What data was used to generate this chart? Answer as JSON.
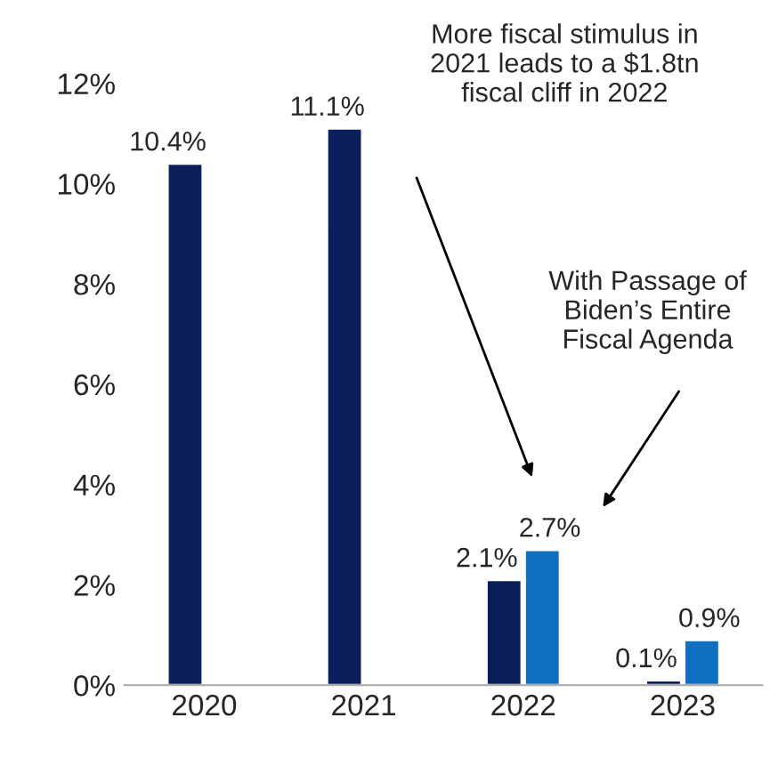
{
  "chart_data": {
    "type": "bar",
    "categories": [
      "2020",
      "2021",
      "2022",
      "2023"
    ],
    "series": [
      {
        "color": "#0b1f5c",
        "values": [
          10.4,
          11.1,
          2.1,
          0.1
        ],
        "value_labels": [
          "10.4%",
          "11.1%",
          "2.1%",
          "0.1%"
        ]
      },
      {
        "color": "#1070c0",
        "values": [
          null,
          null,
          2.7,
          0.9
        ],
        "value_labels": [
          null,
          null,
          "2.7%",
          "0.9%"
        ]
      }
    ],
    "ylim": [
      0,
      12
    ],
    "yticks": [
      {
        "value": 0,
        "label": "0%"
      },
      {
        "value": 2,
        "label": "2%"
      },
      {
        "value": 4,
        "label": "4%"
      },
      {
        "value": 6,
        "label": "6%"
      },
      {
        "value": 8,
        "label": "8%"
      },
      {
        "value": 10,
        "label": "10%"
      },
      {
        "value": 12,
        "label": "12%"
      }
    ],
    "annotations": [
      "More fiscal stimulus in\n2021 leads to a $1.8tn\nfiscal cliff in 2022",
      "With Passage of\nBiden’s Entire\nFiscal Agenda"
    ],
    "grid": false,
    "legend": false
  }
}
